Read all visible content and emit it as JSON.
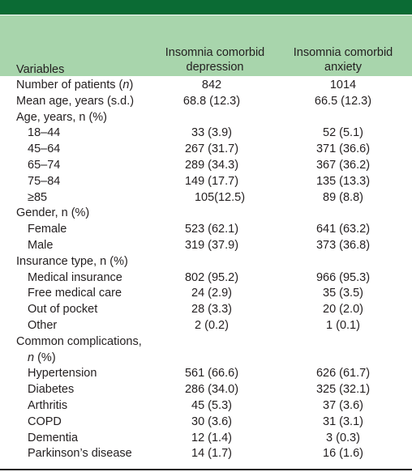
{
  "table": {
    "headers": {
      "variables": "Variables",
      "col1_line1": "Insomnia comorbid",
      "col1_line2": "depression",
      "col2_line1": "Insomnia comorbid",
      "col2_line2": "anxiety"
    },
    "rows": [
      {
        "label": "Number of patients (n)",
        "indent": false,
        "v1": "842",
        "v2": "1014"
      },
      {
        "label": "Mean age, years (s.d.)",
        "indent": false,
        "v1": "68.8 (12.3)",
        "v2": "66.5 (12.3)"
      },
      {
        "label": "Age, years, n (%)",
        "indent": false,
        "v1": "",
        "v2": ""
      },
      {
        "label": "18–44",
        "indent": true,
        "v1": "33 (3.9)",
        "v2": "52 (5.1)"
      },
      {
        "label": "45–64",
        "indent": true,
        "v1": "267 (31.7)",
        "v2": "371 (36.6)"
      },
      {
        "label": "65–74",
        "indent": true,
        "v1": "289 (34.3)",
        "v2": "367 (36.2)"
      },
      {
        "label": "75–84",
        "indent": true,
        "v1": "149 (17.7)",
        "v2": "135 (13.3)"
      },
      {
        "label": "≥85",
        "indent": true,
        "v1": "105(12.5)",
        "v2": "89 (8.8)"
      },
      {
        "label": "Gender, n (%)",
        "indent": false,
        "v1": "",
        "v2": ""
      },
      {
        "label": "Female",
        "indent": true,
        "v1": "523 (62.1)",
        "v2": "641 (63.2)"
      },
      {
        "label": "Male",
        "indent": true,
        "v1": "319 (37.9)",
        "v2": "373 (36.8)"
      },
      {
        "label": "Insurance type, n (%)",
        "indent": false,
        "v1": "",
        "v2": ""
      },
      {
        "label": "Medical insurance",
        "indent": true,
        "v1": "802 (95.2)",
        "v2": "966 (95.3)"
      },
      {
        "label": "Free medical care",
        "indent": true,
        "v1": "24 (2.9)",
        "v2": "35 (3.5)"
      },
      {
        "label": "Out of pocket",
        "indent": true,
        "v1": "28 (3.3)",
        "v2": "20 (2.0)"
      },
      {
        "label": "Other",
        "indent": true,
        "v1": "2 (0.2)",
        "v2": "1 (0.1)"
      },
      {
        "label": "Common complications,",
        "indent": false,
        "v1": "",
        "v2": ""
      },
      {
        "label": "n (%)",
        "indent": true,
        "v1": "",
        "v2": ""
      },
      {
        "label": "Hypertension",
        "indent": true,
        "v1": "561 (66.6)",
        "v2": "626 (61.7)"
      },
      {
        "label": "Diabetes",
        "indent": true,
        "v1": "286 (34.0)",
        "v2": "325 (32.1)"
      },
      {
        "label": "Arthritis",
        "indent": true,
        "v1": "45 (5.3)",
        "v2": "37 (3.6)"
      },
      {
        "label": "COPD",
        "indent": true,
        "v1": "30 (3.6)",
        "v2": "31 (3.1)"
      },
      {
        "label": "Dementia",
        "indent": true,
        "v1": "12 (1.4)",
        "v2": "3 (0.3)"
      },
      {
        "label": "Parkinson’s disease",
        "indent": true,
        "v1": "14 (1.7)",
        "v2": "16 (1.6)"
      }
    ]
  },
  "colors": {
    "title_bar": "#0b6b34",
    "header_band": "#a8d5ac",
    "text": "#231f20"
  }
}
